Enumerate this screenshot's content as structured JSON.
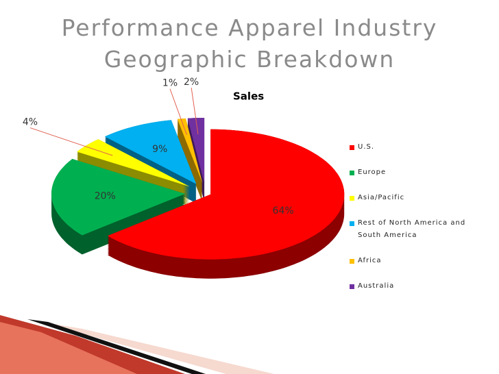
{
  "chart_data": {
    "type": "pie3d",
    "title": "Performance Apparel Industry Geographic Breakdown",
    "chart_title": "Sales",
    "categories": [
      "U.S.",
      "Europe",
      "Asia/Pacific",
      "Rest of North America and South America",
      "Africa",
      "Australia"
    ],
    "values": [
      64,
      20,
      4,
      9,
      1,
      2
    ],
    "value_labels": [
      "64%",
      "20%",
      "4%",
      "9%",
      "1%",
      "2%"
    ],
    "colors": [
      "#ff0000",
      "#00b050",
      "#ffff00",
      "#00b0f0",
      "#ffc000",
      "#7030a0"
    ],
    "legend": "right"
  }
}
